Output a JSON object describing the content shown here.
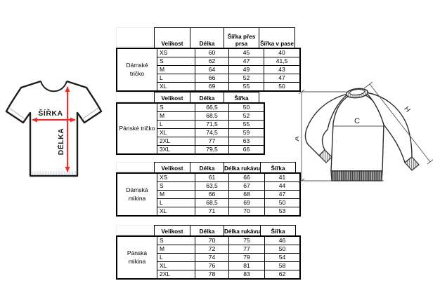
{
  "colors": {
    "arrow_red": "#e8312a",
    "table_border": "#000000"
  },
  "left_diagram": {
    "width_label": "ŠÍŘKA",
    "length_label": "DÉLKA"
  },
  "right_diagram": {
    "length_label": "A",
    "chest_label": "C",
    "sleeve_label": "H"
  },
  "tables": [
    {
      "category": "Dámské tričko",
      "columns": [
        "Velikost",
        "Délka",
        "Šířka přes\nprsa",
        "Šířka v pase"
      ],
      "rows": [
        [
          "XS",
          "60",
          "45",
          "40"
        ],
        [
          "S",
          "62",
          "47",
          "41,5"
        ],
        [
          "M",
          "64",
          "49",
          "43"
        ],
        [
          "L",
          "66",
          "52",
          "47"
        ],
        [
          "XL",
          "69",
          "55",
          "50"
        ]
      ]
    },
    {
      "category": "Pánské tričko",
      "columns": [
        "Velikost",
        "Délka",
        "Šířka"
      ],
      "rows": [
        [
          "S",
          "66,5",
          "50"
        ],
        [
          "M",
          "68,5",
          "52"
        ],
        [
          "L",
          "71,5",
          "55"
        ],
        [
          "XL",
          "74,5",
          "59"
        ],
        [
          "2XL",
          "77",
          "63"
        ],
        [
          "3XL",
          "79,5",
          "66"
        ]
      ]
    },
    {
      "category": "Dámská mikina",
      "columns": [
        "Velikost",
        "Délka",
        "Délka rukávu",
        "Šířka"
      ],
      "rows": [
        [
          "XS",
          "61",
          "66",
          "41"
        ],
        [
          "S",
          "63,5",
          "67",
          "44"
        ],
        [
          "M",
          "66",
          "68",
          "47"
        ],
        [
          "L",
          "68,5",
          "69",
          "50"
        ],
        [
          "XL",
          "71",
          "70",
          "53"
        ]
      ]
    },
    {
      "category": "Pánská mikina",
      "columns": [
        "Velikost",
        "Délka",
        "Délka rukávu",
        "Šířka"
      ],
      "rows": [
        [
          "S",
          "70",
          "75",
          "46"
        ],
        [
          "M",
          "72",
          "77",
          "50"
        ],
        [
          "L",
          "74",
          "79",
          "54"
        ],
        [
          "XL",
          "76",
          "81",
          "58"
        ],
        [
          "2XL",
          "78",
          "83",
          "62"
        ]
      ]
    }
  ]
}
